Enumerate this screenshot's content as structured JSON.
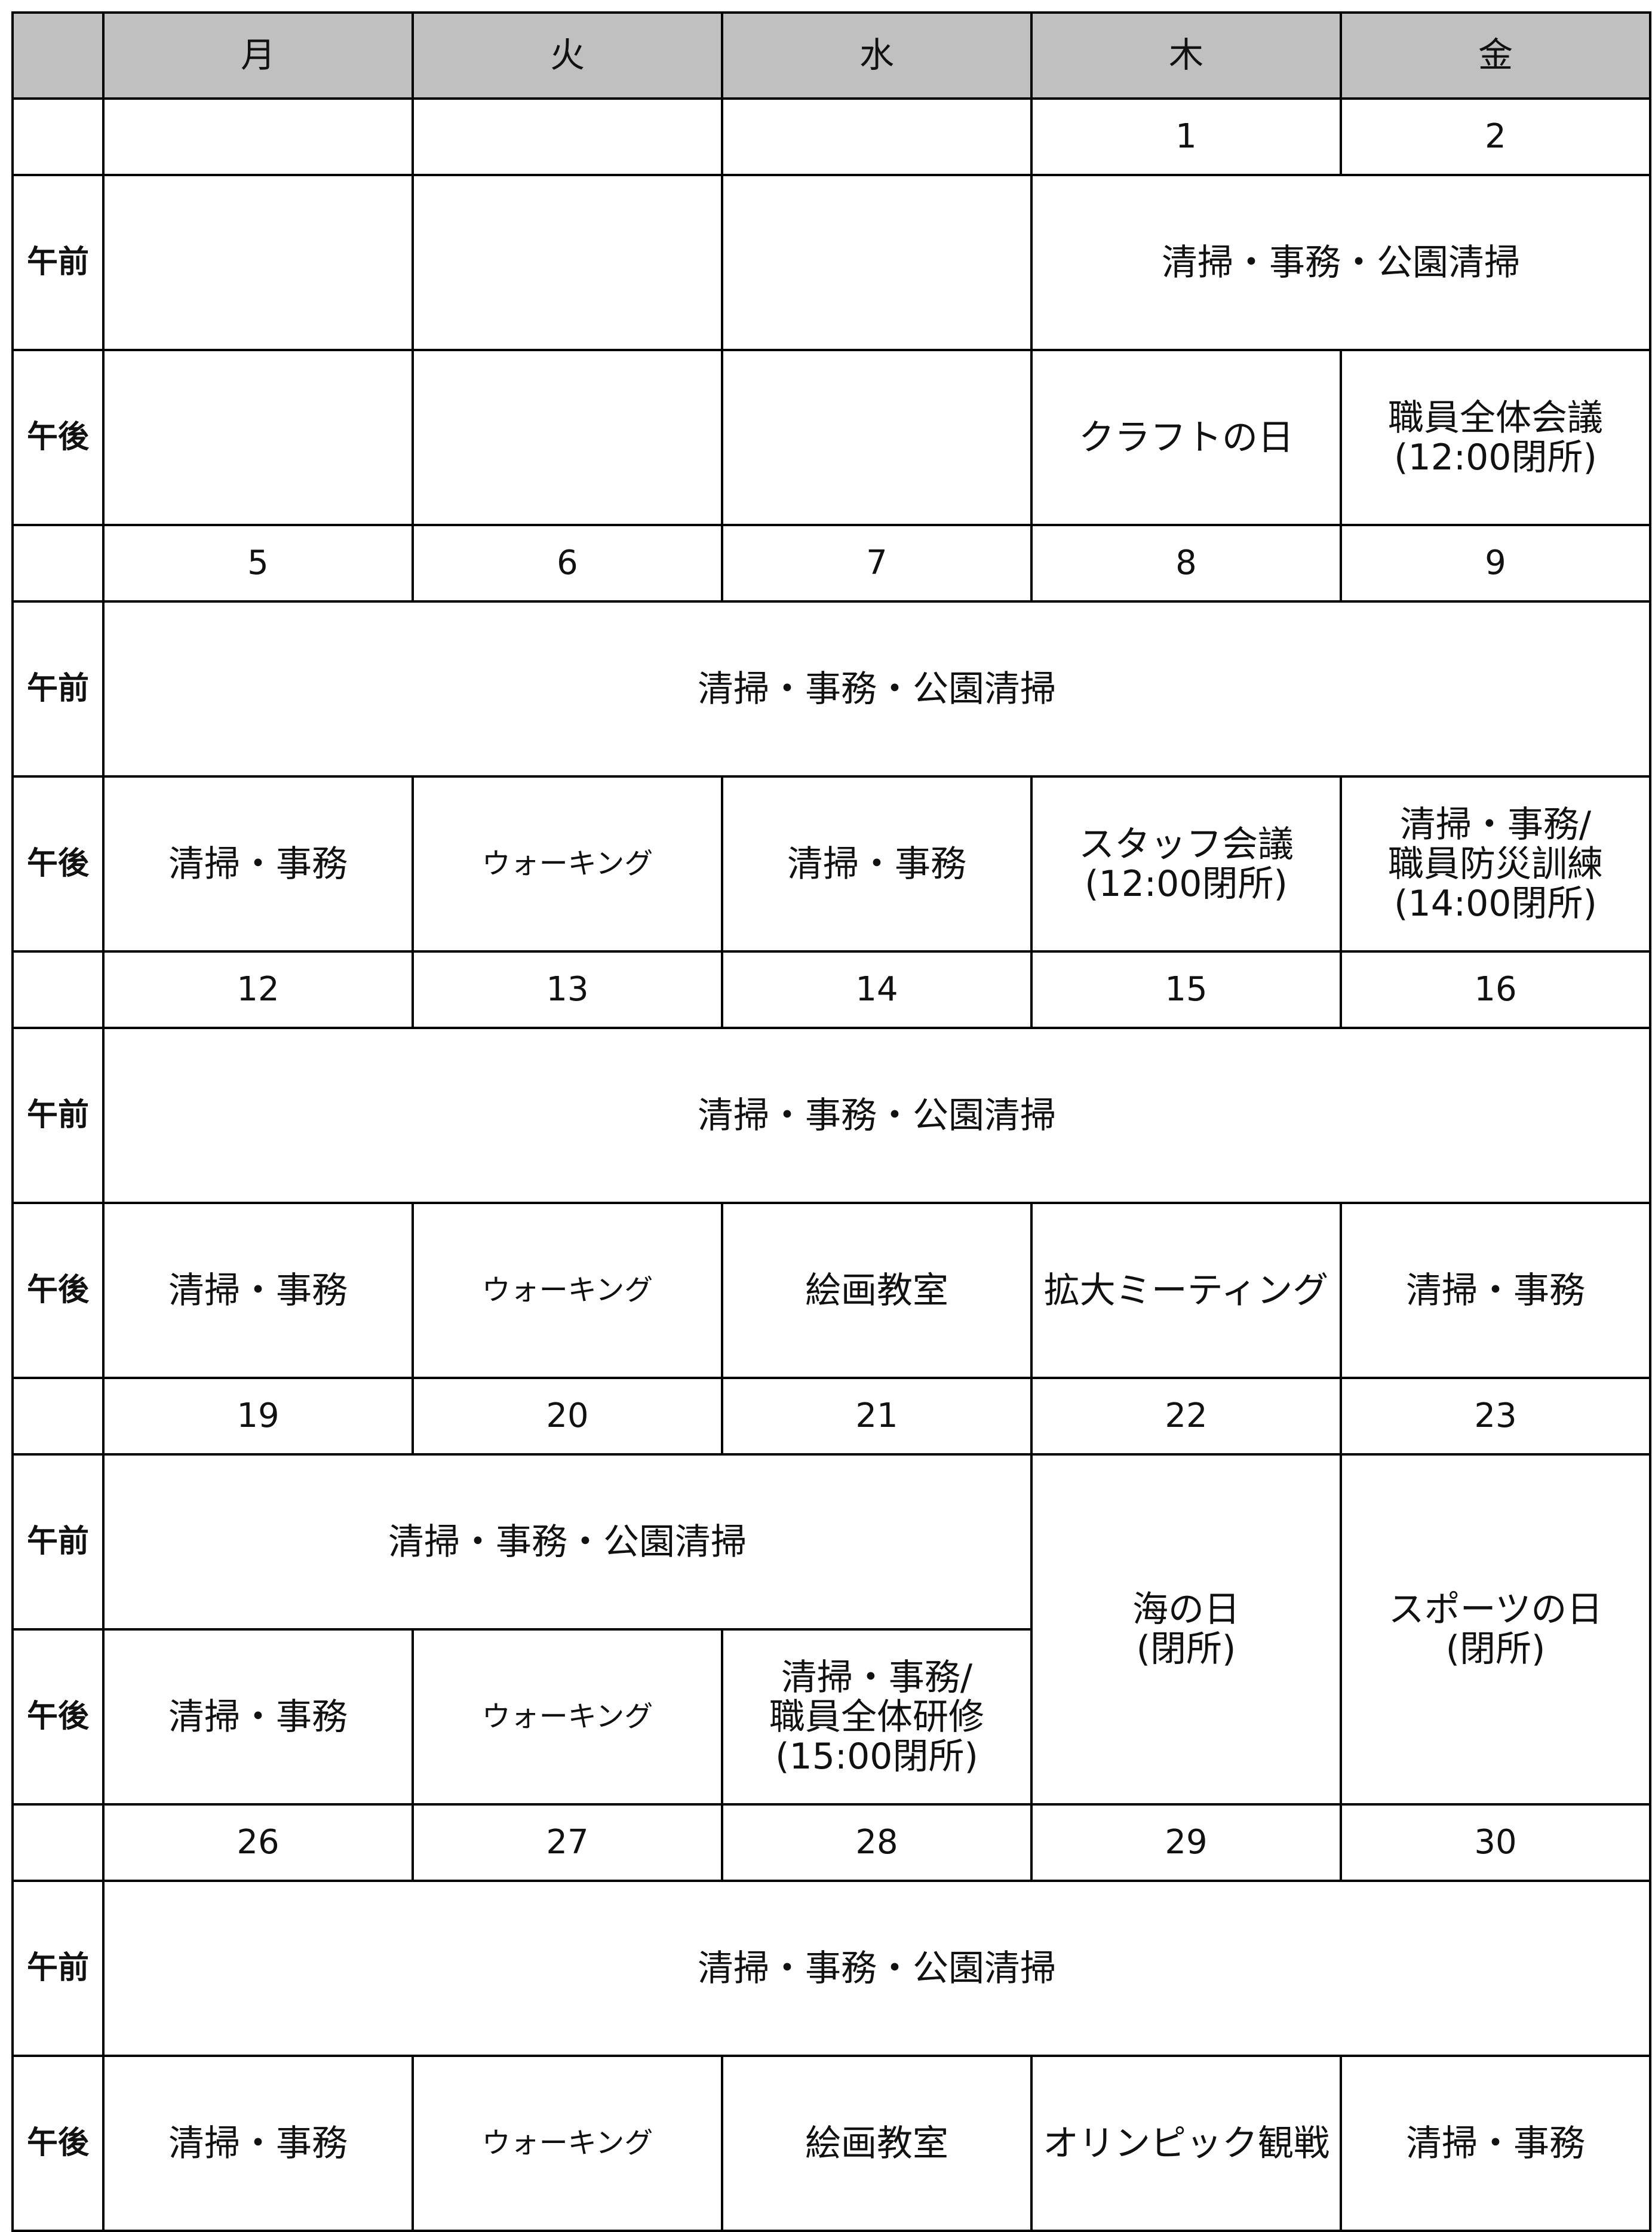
{
  "header": [
    "月",
    "火",
    "水",
    "木",
    "金"
  ],
  "row_labels": [
    "午前",
    "午後"
  ],
  "weeks": [
    {
      "dates": [
        null,
        null,
        null,
        "1",
        "2"
      ],
      "am": [
        null,
        null,
        null,
        "清掃・事務・公園清掃"
      ],
      "pm": [
        null,
        null,
        null,
        "クラフトの日",
        "職員全体会議\n(12:00閉所)"
      ]
    },
    {
      "dates": [
        "5",
        "6",
        "7",
        "8",
        "9"
      ],
      "am": [
        "清掃・事務・公園清掃"
      ],
      "pm": [
        "清掃・事務",
        "ウォーキング",
        "清掃・事務",
        "スタッフ会議\n(12:00閉所)",
        "清掃・事務/\n職員防災訓練\n(14:00閉所)"
      ]
    },
    {
      "dates": [
        "12",
        "13",
        "14",
        "15",
        "16"
      ],
      "am": [
        "清掃・事務・公園清掃"
      ],
      "pm": [
        "清掃・事務",
        "ウォーキング",
        "絵画教室",
        "拡大ミーティング",
        "清掃・事務"
      ]
    },
    {
      "dates": [
        "19",
        "20",
        "21",
        "22",
        "23"
      ],
      "am": [
        "清掃・事務・公園清掃",
        "海の日\n(閉所)",
        "スポーツの日\n(閉所)"
      ],
      "pm": [
        "清掃・事務",
        "ウォーキング",
        "清掃・事務/\n職員全体研修\n(15:00閉所)"
      ]
    },
    {
      "dates": [
        "26",
        "27",
        "28",
        "29",
        "30"
      ],
      "am": [
        "清掃・事務・公園清掃"
      ],
      "pm": [
        "清掃・事務",
        "ウォーキング",
        "絵画教室",
        "オリンピック観戦",
        "清掃・事務"
      ]
    }
  ]
}
